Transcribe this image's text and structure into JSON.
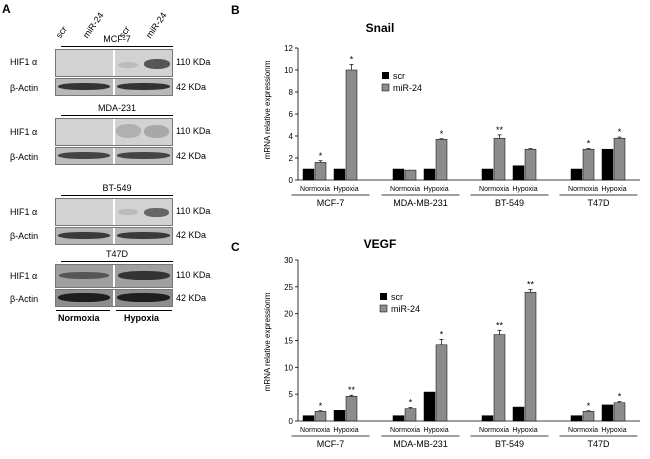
{
  "panel_a": {
    "letter": "A",
    "lanes": [
      "scr",
      "miR-24",
      "scr",
      "miR-24"
    ],
    "cell_lines": [
      "MCF-7",
      "MDA-231",
      "BT-549",
      "T47D"
    ],
    "protein_hif": "HIF1 α",
    "protein_actin": "β-Actin",
    "kda_hif": "110 KDa",
    "kda_actin": "42 KDa",
    "normoxia": "Normoxia",
    "hypoxia": "Hypoxia"
  },
  "chart_data": [
    {
      "panel": "B",
      "type": "bar",
      "title": "Snail",
      "ylabel": "mRNA relative expressionm",
      "ylim": [
        0,
        12
      ],
      "yticks": [
        0,
        2,
        4,
        6,
        8,
        10,
        12
      ],
      "groups": [
        "MCF-7",
        "MDA-MB-231",
        "BT-549",
        "T47D"
      ],
      "conditions": [
        "Normoxia",
        "Hypoxia"
      ],
      "series": [
        {
          "name": "scr",
          "color": "#000000",
          "values": [
            1.0,
            1.0,
            1.0,
            1.0,
            1.0,
            1.3,
            1.0,
            2.8
          ]
        },
        {
          "name": "miR-24",
          "color": "#8c8c8c",
          "values": [
            1.6,
            10.0,
            0.9,
            3.7,
            3.8,
            2.8,
            2.8,
            3.8
          ]
        }
      ],
      "errors": [
        0.15,
        0.5,
        0.0,
        0.05,
        0.3,
        0.05,
        0.05,
        0.1
      ],
      "significance": [
        "*",
        "*",
        "",
        "*",
        "**",
        "",
        "*",
        "*"
      ]
    },
    {
      "panel": "C",
      "type": "bar",
      "title": "VEGF",
      "ylabel": "mRNA relative expressionm",
      "ylim": [
        0,
        30
      ],
      "yticks": [
        0,
        5,
        10,
        15,
        20,
        25,
        30
      ],
      "groups": [
        "MCF-7",
        "MDA-MB-231",
        "BT-549",
        "T47D"
      ],
      "conditions": [
        "Normoxia",
        "Hypoxia"
      ],
      "series": [
        {
          "name": "scr",
          "color": "#000000",
          "values": [
            1.0,
            2.0,
            1.0,
            5.4,
            1.0,
            2.6,
            1.0,
            3.0
          ]
        },
        {
          "name": "miR-24",
          "color": "#8c8c8c",
          "values": [
            1.8,
            4.6,
            2.3,
            14.2,
            16.1,
            24.0,
            1.8,
            3.4
          ]
        }
      ],
      "errors": [
        0.1,
        0.2,
        0.2,
        1.0,
        0.8,
        0.5,
        0.1,
        0.2
      ],
      "significance": [
        "*",
        "**",
        "*",
        "*",
        "**",
        "**",
        "*",
        "*"
      ]
    }
  ]
}
